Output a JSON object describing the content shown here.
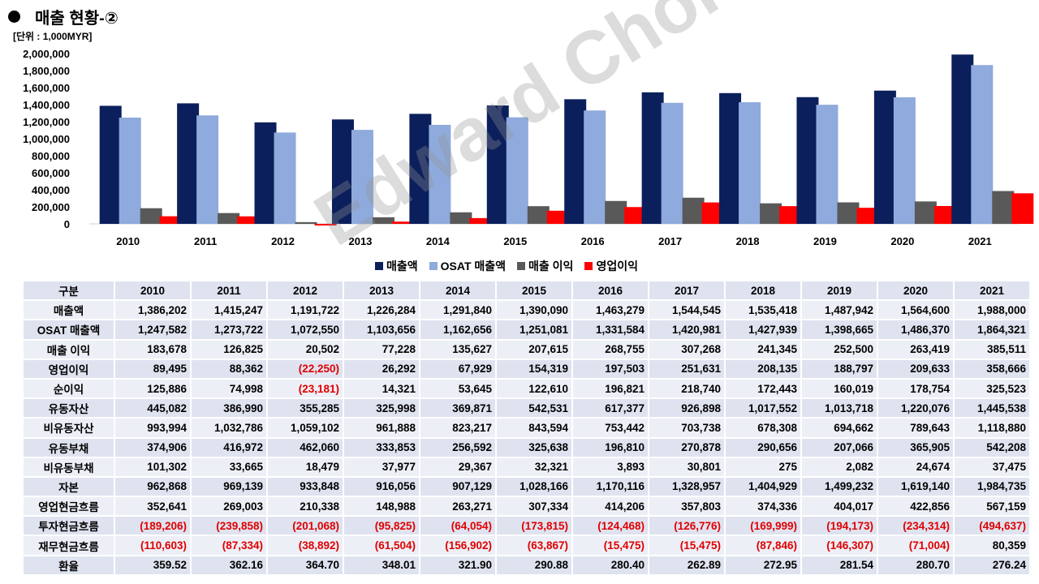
{
  "page": {
    "title": "매출 현황-②",
    "unit": "[단위 : 1,000MYR]",
    "watermark": "Edward Choi"
  },
  "chart_data": {
    "type": "bar",
    "title": "매출 현황-②",
    "ylabel": "[단위 : 1,000MYR]",
    "xlabel": "",
    "ylim": [
      0,
      2000000
    ],
    "yticks": [
      "2,000,000",
      "1,800,000",
      "1,600,000",
      "1,400,000",
      "1,200,000",
      "1,000,000",
      "800,000",
      "600,000",
      "400,000",
      "200,000",
      "0"
    ],
    "categories": [
      "2010",
      "2011",
      "2012",
      "2013",
      "2014",
      "2015",
      "2016",
      "2017",
      "2018",
      "2019",
      "2020",
      "2021"
    ],
    "series": [
      {
        "name": "매출액",
        "color": "#0b1f5c",
        "values": [
          1386202,
          1415247,
          1191722,
          1226284,
          1291840,
          1390090,
          1463279,
          1544545,
          1535418,
          1487942,
          1564600,
          1988000
        ]
      },
      {
        "name": "OSAT 매출액",
        "color": "#8faadc",
        "values": [
          1247582,
          1273722,
          1072550,
          1103656,
          1162656,
          1251081,
          1331584,
          1420981,
          1427939,
          1398665,
          1486370,
          1864321
        ]
      },
      {
        "name": "매출 이익",
        "color": "#595959",
        "values": [
          183678,
          126825,
          20502,
          77228,
          135627,
          207615,
          268755,
          307268,
          241345,
          252500,
          263419,
          385511
        ]
      },
      {
        "name": "영업이익",
        "color": "#ff0000",
        "values": [
          89495,
          88362,
          -22250,
          26292,
          67929,
          154319,
          197503,
          251631,
          208135,
          188797,
          209633,
          358666
        ]
      }
    ],
    "legend_position": "bottom"
  },
  "table": {
    "header": [
      "구분",
      "2010",
      "2011",
      "2012",
      "2013",
      "2014",
      "2015",
      "2016",
      "2017",
      "2018",
      "2019",
      "2020",
      "2021"
    ],
    "rows": [
      {
        "label": "매출액",
        "cells": [
          {
            "v": "1,386,202"
          },
          {
            "v": "1,415,247"
          },
          {
            "v": "1,191,722"
          },
          {
            "v": "1,226,284"
          },
          {
            "v": "1,291,840"
          },
          {
            "v": "1,390,090"
          },
          {
            "v": "1,463,279"
          },
          {
            "v": "1,544,545"
          },
          {
            "v": "1,535,418"
          },
          {
            "v": "1,487,942"
          },
          {
            "v": "1,564,600"
          },
          {
            "v": "1,988,000"
          }
        ]
      },
      {
        "label": "OSAT 매출액",
        "cells": [
          {
            "v": "1,247,582"
          },
          {
            "v": "1,273,722"
          },
          {
            "v": "1,072,550"
          },
          {
            "v": "1,103,656"
          },
          {
            "v": "1,162,656"
          },
          {
            "v": "1,251,081"
          },
          {
            "v": "1,331,584"
          },
          {
            "v": "1,420,981"
          },
          {
            "v": "1,427,939"
          },
          {
            "v": "1,398,665"
          },
          {
            "v": "1,486,370"
          },
          {
            "v": "1,864,321"
          }
        ]
      },
      {
        "label": "매출 이익",
        "cells": [
          {
            "v": "183,678"
          },
          {
            "v": "126,825"
          },
          {
            "v": "20,502"
          },
          {
            "v": "77,228"
          },
          {
            "v": "135,627"
          },
          {
            "v": "207,615"
          },
          {
            "v": "268,755"
          },
          {
            "v": "307,268"
          },
          {
            "v": "241,345"
          },
          {
            "v": "252,500"
          },
          {
            "v": "263,419"
          },
          {
            "v": "385,511"
          }
        ]
      },
      {
        "label": "영업이익",
        "cells": [
          {
            "v": "89,495"
          },
          {
            "v": "88,362"
          },
          {
            "v": "(22,250)",
            "neg": true
          },
          {
            "v": "26,292"
          },
          {
            "v": "67,929"
          },
          {
            "v": "154,319"
          },
          {
            "v": "197,503"
          },
          {
            "v": "251,631"
          },
          {
            "v": "208,135"
          },
          {
            "v": "188,797"
          },
          {
            "v": "209,633"
          },
          {
            "v": "358,666"
          }
        ]
      },
      {
        "label": "순이익",
        "cells": [
          {
            "v": "125,886"
          },
          {
            "v": "74,998"
          },
          {
            "v": "(23,181)",
            "neg": true
          },
          {
            "v": "14,321"
          },
          {
            "v": "53,645"
          },
          {
            "v": "122,610"
          },
          {
            "v": "196,821"
          },
          {
            "v": "218,740"
          },
          {
            "v": "172,443"
          },
          {
            "v": "160,019"
          },
          {
            "v": "178,754"
          },
          {
            "v": "325,523"
          }
        ]
      },
      {
        "label": "유동자산",
        "cells": [
          {
            "v": "445,082"
          },
          {
            "v": "386,990"
          },
          {
            "v": "355,285"
          },
          {
            "v": "325,998"
          },
          {
            "v": "369,871"
          },
          {
            "v": "542,531"
          },
          {
            "v": "617,377"
          },
          {
            "v": "926,898"
          },
          {
            "v": "1,017,552"
          },
          {
            "v": "1,013,718"
          },
          {
            "v": "1,220,076"
          },
          {
            "v": "1,445,538"
          }
        ]
      },
      {
        "label": "비유동자산",
        "cells": [
          {
            "v": "993,994"
          },
          {
            "v": "1,032,786"
          },
          {
            "v": "1,059,102"
          },
          {
            "v": "961,888"
          },
          {
            "v": "823,217"
          },
          {
            "v": "843,594"
          },
          {
            "v": "753,442"
          },
          {
            "v": "703,738"
          },
          {
            "v": "678,308"
          },
          {
            "v": "694,662"
          },
          {
            "v": "789,643"
          },
          {
            "v": "1,118,880"
          }
        ]
      },
      {
        "label": "유동부채",
        "cells": [
          {
            "v": "374,906"
          },
          {
            "v": "416,972"
          },
          {
            "v": "462,060"
          },
          {
            "v": "333,853"
          },
          {
            "v": "256,592"
          },
          {
            "v": "325,638"
          },
          {
            "v": "196,810"
          },
          {
            "v": "270,878"
          },
          {
            "v": "290,656"
          },
          {
            "v": "207,066"
          },
          {
            "v": "365,905"
          },
          {
            "v": "542,208"
          }
        ]
      },
      {
        "label": "비유동부채",
        "cells": [
          {
            "v": "101,302"
          },
          {
            "v": "33,665"
          },
          {
            "v": "18,479"
          },
          {
            "v": "37,977"
          },
          {
            "v": "29,367"
          },
          {
            "v": "32,321"
          },
          {
            "v": "3,893"
          },
          {
            "v": "30,801"
          },
          {
            "v": "275"
          },
          {
            "v": "2,082"
          },
          {
            "v": "24,674"
          },
          {
            "v": "37,475"
          }
        ]
      },
      {
        "label": "자본",
        "cells": [
          {
            "v": "962,868"
          },
          {
            "v": "969,139"
          },
          {
            "v": "933,848"
          },
          {
            "v": "916,056"
          },
          {
            "v": "907,129"
          },
          {
            "v": "1,028,166"
          },
          {
            "v": "1,170,116"
          },
          {
            "v": "1,328,957"
          },
          {
            "v": "1,404,929"
          },
          {
            "v": "1,499,232"
          },
          {
            "v": "1,619,140"
          },
          {
            "v": "1,984,735"
          }
        ]
      },
      {
        "label": "영업현금흐름",
        "cells": [
          {
            "v": "352,641"
          },
          {
            "v": "269,003"
          },
          {
            "v": "210,338"
          },
          {
            "v": "148,988"
          },
          {
            "v": "263,271"
          },
          {
            "v": "307,334"
          },
          {
            "v": "414,206"
          },
          {
            "v": "357,803"
          },
          {
            "v": "374,336"
          },
          {
            "v": "404,017"
          },
          {
            "v": "422,856"
          },
          {
            "v": "567,159"
          }
        ]
      },
      {
        "label": "투자현금흐름",
        "cells": [
          {
            "v": "(189,206)",
            "neg": true
          },
          {
            "v": "(239,858)",
            "neg": true
          },
          {
            "v": "(201,068)",
            "neg": true
          },
          {
            "v": "(95,825)",
            "neg": true
          },
          {
            "v": "(64,054)",
            "neg": true
          },
          {
            "v": "(173,815)",
            "neg": true
          },
          {
            "v": "(124,468)",
            "neg": true
          },
          {
            "v": "(126,776)",
            "neg": true
          },
          {
            "v": "(169,999)",
            "neg": true
          },
          {
            "v": "(194,173)",
            "neg": true
          },
          {
            "v": "(234,314)",
            "neg": true
          },
          {
            "v": "(494,637)",
            "neg": true
          }
        ]
      },
      {
        "label": "재무현금흐름",
        "cells": [
          {
            "v": "(110,603)",
            "neg": true
          },
          {
            "v": "(87,334)",
            "neg": true
          },
          {
            "v": "(38,892)",
            "neg": true
          },
          {
            "v": "(61,504)",
            "neg": true
          },
          {
            "v": "(156,902)",
            "neg": true
          },
          {
            "v": "(63,867)",
            "neg": true
          },
          {
            "v": "(15,475)",
            "neg": true
          },
          {
            "v": "(15,475)",
            "neg": true
          },
          {
            "v": "(87,846)",
            "neg": true
          },
          {
            "v": "(146,307)",
            "neg": true
          },
          {
            "v": "(71,004)",
            "neg": true
          },
          {
            "v": "80,359"
          }
        ]
      },
      {
        "label": "환율",
        "cells": [
          {
            "v": "359.52"
          },
          {
            "v": "362.16"
          },
          {
            "v": "364.70"
          },
          {
            "v": "348.01"
          },
          {
            "v": "321.90"
          },
          {
            "v": "290.88"
          },
          {
            "v": "280.40"
          },
          {
            "v": "262.89"
          },
          {
            "v": "272.95"
          },
          {
            "v": "281.54"
          },
          {
            "v": "280.70"
          },
          {
            "v": "276.24"
          }
        ]
      }
    ]
  }
}
